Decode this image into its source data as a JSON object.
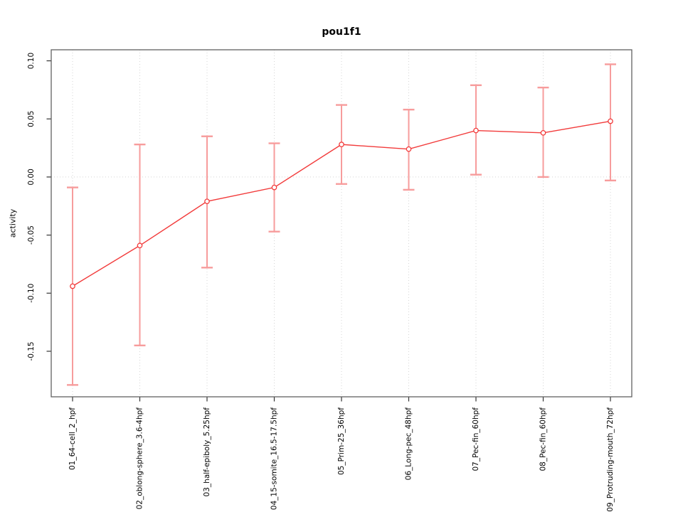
{
  "chart_data": {
    "type": "line",
    "title": "pou1f1",
    "xlabel": "",
    "ylabel": "activity",
    "categories": [
      "01_64-cell_2_hpf",
      "02_oblong-sphere_3.6-4hpf",
      "03_half-epiboly_5.25hpf",
      "04_15-somite_16.5-17.5hpf",
      "05_Prim-25_36hpf",
      "06_Long-pec_48hpf",
      "07_Pec-fin_60hpf",
      "08_Pec-fin_60hpf",
      "09_Protruding-mouth_72hpf"
    ],
    "series": [
      {
        "name": "pou1f1 activity",
        "values": [
          -0.094,
          -0.059,
          -0.021,
          -0.009,
          0.028,
          0.024,
          0.04,
          0.038,
          0.048
        ],
        "error_low": [
          -0.179,
          -0.145,
          -0.078,
          -0.047,
          -0.006,
          -0.011,
          0.002,
          0.0,
          -0.003
        ],
        "error_high": [
          -0.009,
          0.028,
          0.035,
          0.029,
          0.062,
          0.058,
          0.079,
          0.077,
          0.097
        ]
      }
    ],
    "yticks": [
      0.1,
      0.05,
      0.0,
      -0.05,
      -0.1,
      -0.15
    ],
    "ytick_labels": [
      "0.10",
      "0.05",
      "0.00",
      "-0.05",
      "-0.10",
      "-0.15"
    ],
    "ylim": [
      -0.1892,
      0.1095
    ],
    "zero_reference_line": 0,
    "grid": {
      "vertical_dotted_per_category": true,
      "horizontal_dotted_at_zero": true
    },
    "legend": "none",
    "marker": "open-circle",
    "colors": {
      "line": "#f23b3b",
      "marker_stroke": "#f23b3b",
      "marker_fill": "#ffffff",
      "error_bar": "#f79c9c",
      "grid": "#d4d4d4",
      "axis_box": "#606060",
      "tick": "#333333",
      "text": "#000000",
      "background": "#ffffff"
    }
  }
}
